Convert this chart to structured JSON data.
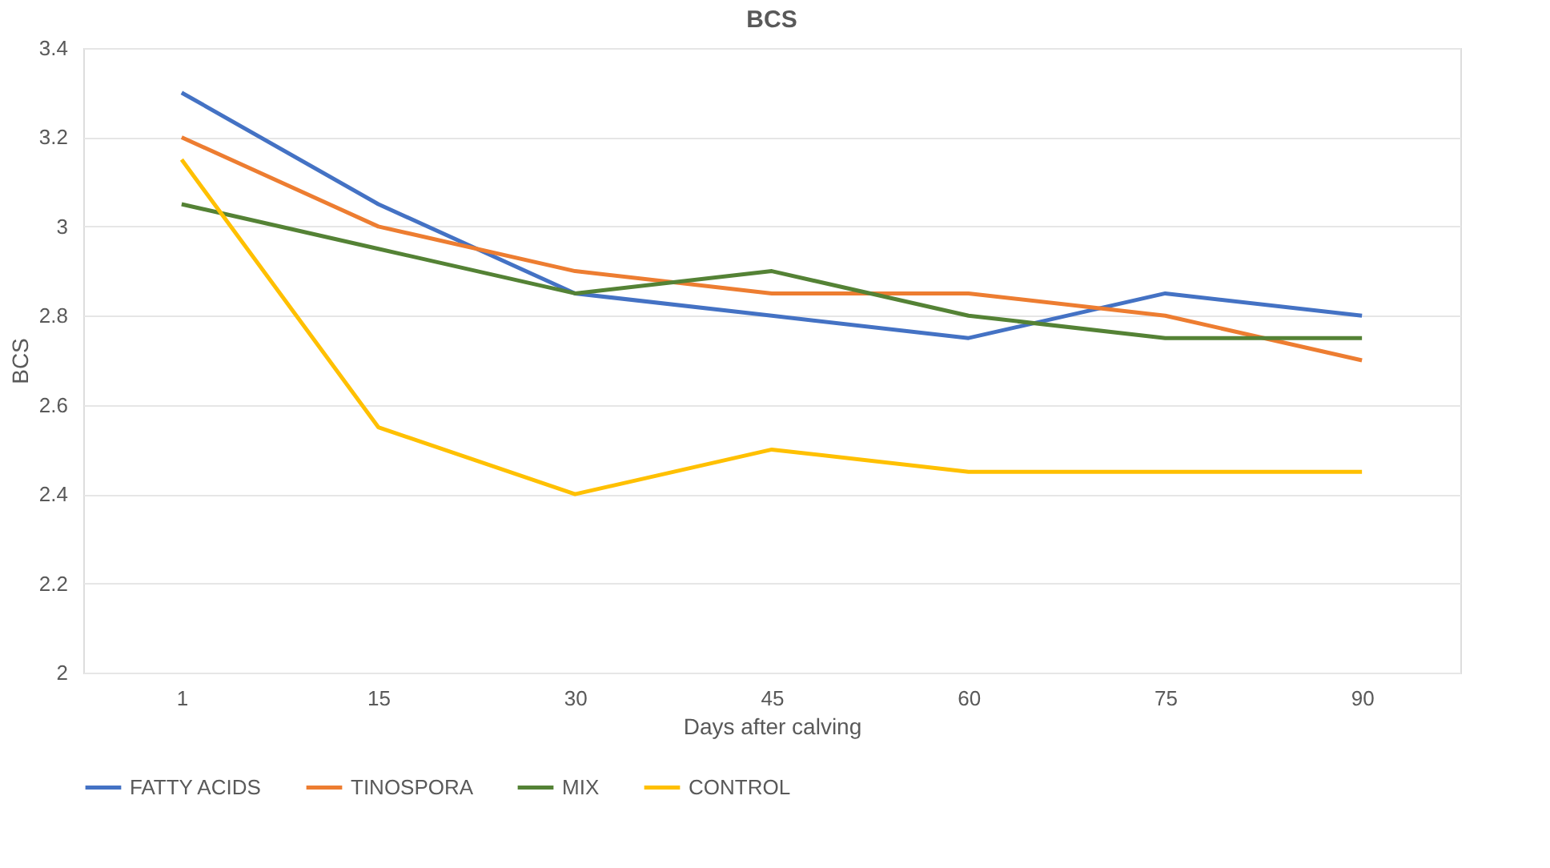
{
  "chart_data": {
    "type": "line",
    "title": "BCS",
    "xlabel": "Days after calving",
    "ylabel": "BCS",
    "categories": [
      "1",
      "15",
      "30",
      "45",
      "60",
      "75",
      "90"
    ],
    "series": [
      {
        "name": "FATTY ACIDS",
        "color": "#4472c4",
        "values": [
          3.3,
          3.05,
          2.85,
          2.8,
          2.75,
          2.85,
          2.8
        ]
      },
      {
        "name": "TINOSPORA",
        "color": "#ed7d31",
        "values": [
          3.2,
          3.0,
          2.9,
          2.85,
          2.85,
          2.8,
          2.7
        ]
      },
      {
        "name": "MIX",
        "color": "#548235",
        "values": [
          3.05,
          2.95,
          2.85,
          2.9,
          2.8,
          2.75,
          2.75
        ]
      },
      {
        "name": "CONTROL",
        "color": "#ffc000",
        "values": [
          3.15,
          2.55,
          2.4,
          2.5,
          2.45,
          2.45,
          2.45
        ]
      }
    ],
    "ylim": [
      2,
      3.4
    ],
    "yticks": [
      2,
      2.2,
      2.4,
      2.6,
      2.8,
      3,
      3.2,
      3.4
    ],
    "grid": "y",
    "legend": "bottom",
    "marker": "none",
    "line_style": "solid"
  }
}
